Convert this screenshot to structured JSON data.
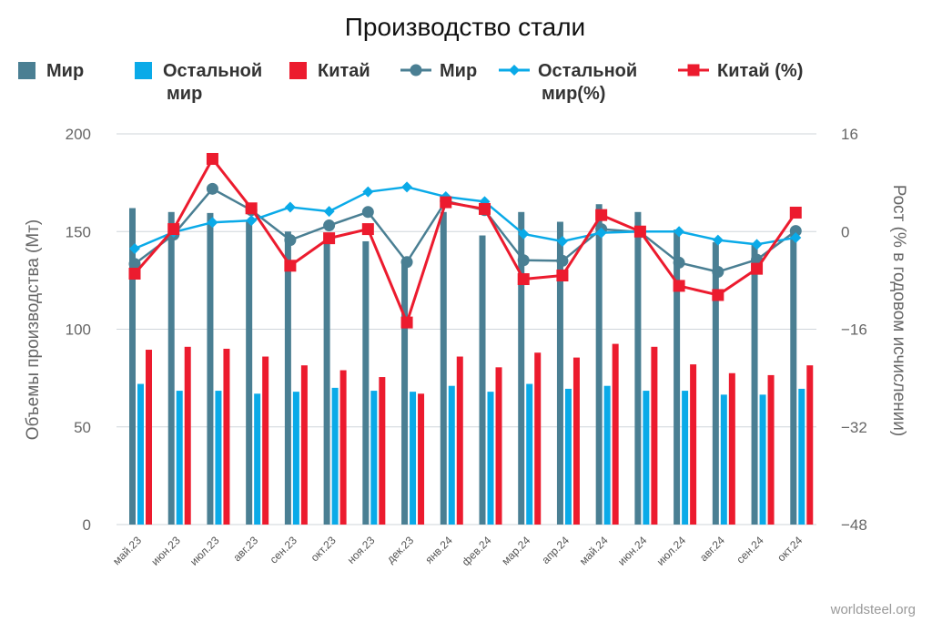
{
  "chart_data": {
    "type": "bar",
    "title": "Производство стали",
    "categories": [
      "май.23",
      "июн.23",
      "июл.23",
      "авг.23",
      "сен.23",
      "окт.23",
      "ноя.23",
      "дек.23",
      "янв.24",
      "фев.24",
      "мар.24",
      "апр.24",
      "май.24",
      "июн.24",
      "июл.24",
      "авг.24",
      "сен.24",
      "окт.24"
    ],
    "y_left": {
      "label": "Объемы производства (Мт)",
      "min": 0,
      "max": 200,
      "ticks": [
        0,
        50,
        100,
        150,
        200
      ]
    },
    "y_right": {
      "label": "Рост (% в годовом исчислении)",
      "min": -48,
      "max": 16,
      "ticks": [
        -48,
        -32,
        -16,
        0,
        16
      ],
      "tick_labels": [
        "−48",
        "−32",
        "−16",
        "0",
        "16"
      ]
    },
    "bar_series": [
      {
        "name": "Мир",
        "color": "#4a7f93",
        "values": [
          162,
          160,
          159.5,
          155,
          150,
          148,
          145,
          135,
          160,
          148,
          160,
          155,
          164,
          160,
          151,
          144.5,
          144,
          151
        ]
      },
      {
        "name": "Остальной мир",
        "color": "#0aaae8",
        "values": [
          72,
          68.5,
          68.5,
          67,
          68,
          70,
          68.5,
          68,
          71,
          68,
          72,
          69.5,
          71,
          68.5,
          68.5,
          66.5,
          66.5,
          69.5
        ]
      },
      {
        "name": "Китай",
        "color": "#ec1b2e",
        "values": [
          89.5,
          91,
          90,
          86,
          81.5,
          79,
          75.5,
          67,
          86,
          80.5,
          88,
          85.5,
          92.5,
          91,
          82,
          77.5,
          76.5,
          81.5
        ]
      }
    ],
    "line_series": [
      {
        "name": "Мир",
        "color": "#4a7f93",
        "marker": "circle",
        "values": [
          -5.3,
          -0.5,
          7,
          3.5,
          -1.4,
          1,
          3.2,
          -5,
          5,
          3.5,
          -4.7,
          -4.8,
          0.4,
          -0.1,
          -5.1,
          -6.6,
          -4.6,
          0.1
        ]
      },
      {
        "name": "Остальной мир(%)",
        "color": "#0aaae8",
        "marker": "diamond",
        "values": [
          -2.8,
          -0.1,
          1.5,
          1.8,
          4,
          3.3,
          6.5,
          7.3,
          5.7,
          4.9,
          -0.4,
          -1.6,
          -0.2,
          0,
          0,
          -1.4,
          -2.1,
          -1
        ]
      },
      {
        "name": "Китай (%)",
        "color": "#ec1b2e",
        "marker": "square",
        "values": [
          -6.9,
          0.4,
          11.9,
          3.8,
          -5.6,
          -1.1,
          0.4,
          -14.9,
          4.8,
          3.7,
          -7.8,
          -7.2,
          2.7,
          0,
          -8.9,
          -10.4,
          -6.1,
          3.1
        ]
      }
    ],
    "legend": {
      "position": "top",
      "items": [
        "Мир",
        "Остальной мир",
        "Китай",
        "Мир",
        "Остальной мир(%)",
        "Китай (%)"
      ]
    },
    "grid": true
  },
  "source": "worldsteel.org"
}
